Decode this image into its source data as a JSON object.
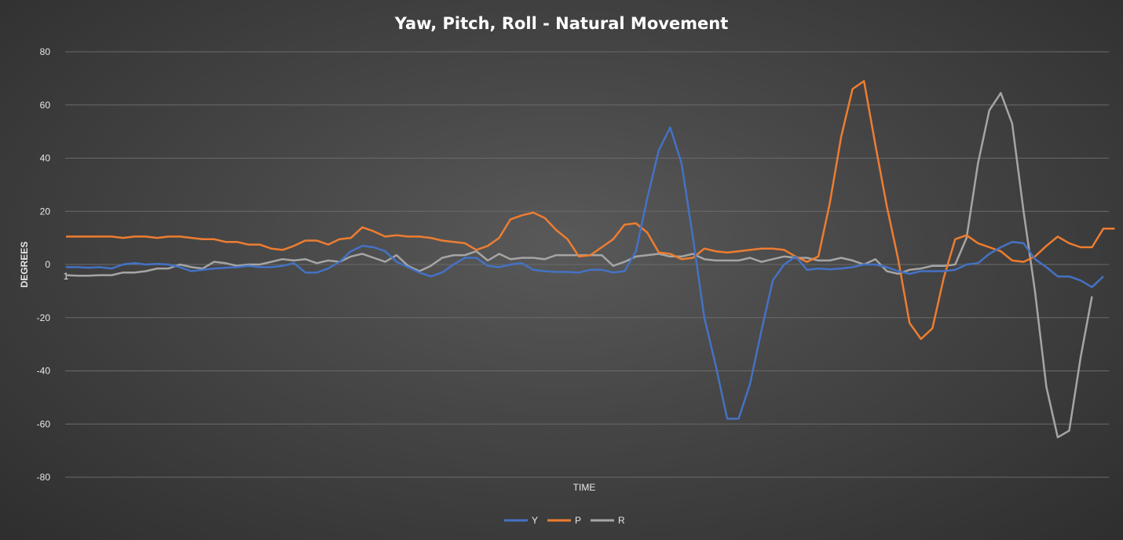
{
  "chart_data": {
    "type": "line",
    "title": "Yaw, Pitch, Roll -  Natural Movement",
    "xlabel": "TIME",
    "ylabel": "DEGREES",
    "x_ticks": [
      "1"
    ],
    "ylim": [
      -80,
      80
    ],
    "y_ticks": [
      80,
      60,
      40,
      20,
      0,
      -20,
      -40,
      -60,
      -80
    ],
    "grid": true,
    "legend_position": "bottom",
    "series": [
      {
        "name": "Y",
        "color": "#4472c4",
        "values": [
          -1,
          -1,
          -1.2,
          -1,
          -1.5,
          0,
          0.5,
          0,
          0.2,
          0,
          -1,
          -2.5,
          -2,
          -1.5,
          -1.2,
          -1,
          -0.5,
          -1,
          -1,
          -0.5,
          0.5,
          -3,
          -3,
          -1.5,
          1,
          5,
          7,
          6.5,
          5,
          1,
          -1,
          -3,
          -4.5,
          -3,
          0,
          2.5,
          2.5,
          -0.5,
          -1,
          0,
          0.5,
          -2,
          -2.5,
          -2.8,
          -2.8,
          -3,
          -2,
          -2,
          -3,
          -2.5,
          5,
          25,
          43,
          51.5,
          38,
          10,
          -20,
          -38,
          -58,
          -58,
          -45,
          -25,
          -6,
          0,
          3,
          -2,
          -1.5,
          -1.8,
          -1.5,
          -1,
          0,
          0,
          -1,
          -2.5,
          -3.5,
          -2.5,
          -2.5,
          -2.5,
          -2,
          0,
          0.5,
          4,
          6.5,
          8.5,
          8,
          2,
          -1,
          -4.5,
          -4.5,
          -6,
          -8.5,
          -4.5
        ],
        "values_note": ""
      },
      {
        "name": "P",
        "color": "#ed7d31",
        "values": [
          10.5,
          10.5,
          10.5,
          10.5,
          10.5,
          10,
          10.5,
          10.5,
          10,
          10.5,
          10.5,
          10,
          9.5,
          9.5,
          8.5,
          8.5,
          7.5,
          7.5,
          6,
          5.5,
          7,
          9,
          9,
          7.5,
          9.5,
          10,
          14,
          12.5,
          10.5,
          11,
          10.5,
          10.5,
          10,
          9,
          8.5,
          8,
          5.5,
          7,
          10,
          17,
          18.5,
          19.5,
          17.5,
          13,
          9.5,
          3,
          3.5,
          6.5,
          9.5,
          15,
          15.5,
          12,
          4.5,
          4,
          2,
          2.5,
          6,
          5,
          4.5,
          5,
          5.5,
          6,
          6,
          5.5,
          3,
          1,
          3,
          23,
          48,
          66,
          69,
          45,
          22,
          2,
          -22,
          -28,
          -24,
          -5,
          9.5,
          11,
          8,
          6.5,
          5,
          1.5,
          1,
          3,
          7,
          10.5,
          8,
          6.5,
          6.5,
          13.5,
          13.5
        ]
      },
      {
        "name": "R",
        "color": "#a5a5a5",
        "values": [
          -4,
          -4.2,
          -4.2,
          -4,
          -4,
          -3,
          -3,
          -2.5,
          -1.5,
          -1.5,
          0,
          -1,
          -1.5,
          1,
          0.5,
          -0.5,
          0,
          0,
          1,
          2,
          1.5,
          2,
          0.5,
          1.5,
          1,
          3,
          4,
          2.5,
          1,
          3.5,
          -0.5,
          -2.5,
          -0.5,
          2.5,
          3.5,
          3.5,
          5,
          1.5,
          4,
          2,
          2.5,
          2.5,
          2,
          3.5,
          3.5,
          3.5,
          3.5,
          3.5,
          -0.5,
          1,
          3,
          3.5,
          4,
          3,
          3,
          4,
          2,
          1.5,
          1.5,
          1.5,
          2.5,
          1,
          2,
          3,
          2.5,
          2.5,
          1.5,
          1.5,
          2.5,
          1.5,
          0,
          2,
          -2.5,
          -3.5,
          -2,
          -1.5,
          -0.5,
          -0.5,
          0,
          10,
          38,
          58,
          64.5,
          53,
          20,
          -10,
          -46,
          -65,
          -62.5,
          -35,
          -12
        ]
      }
    ]
  }
}
